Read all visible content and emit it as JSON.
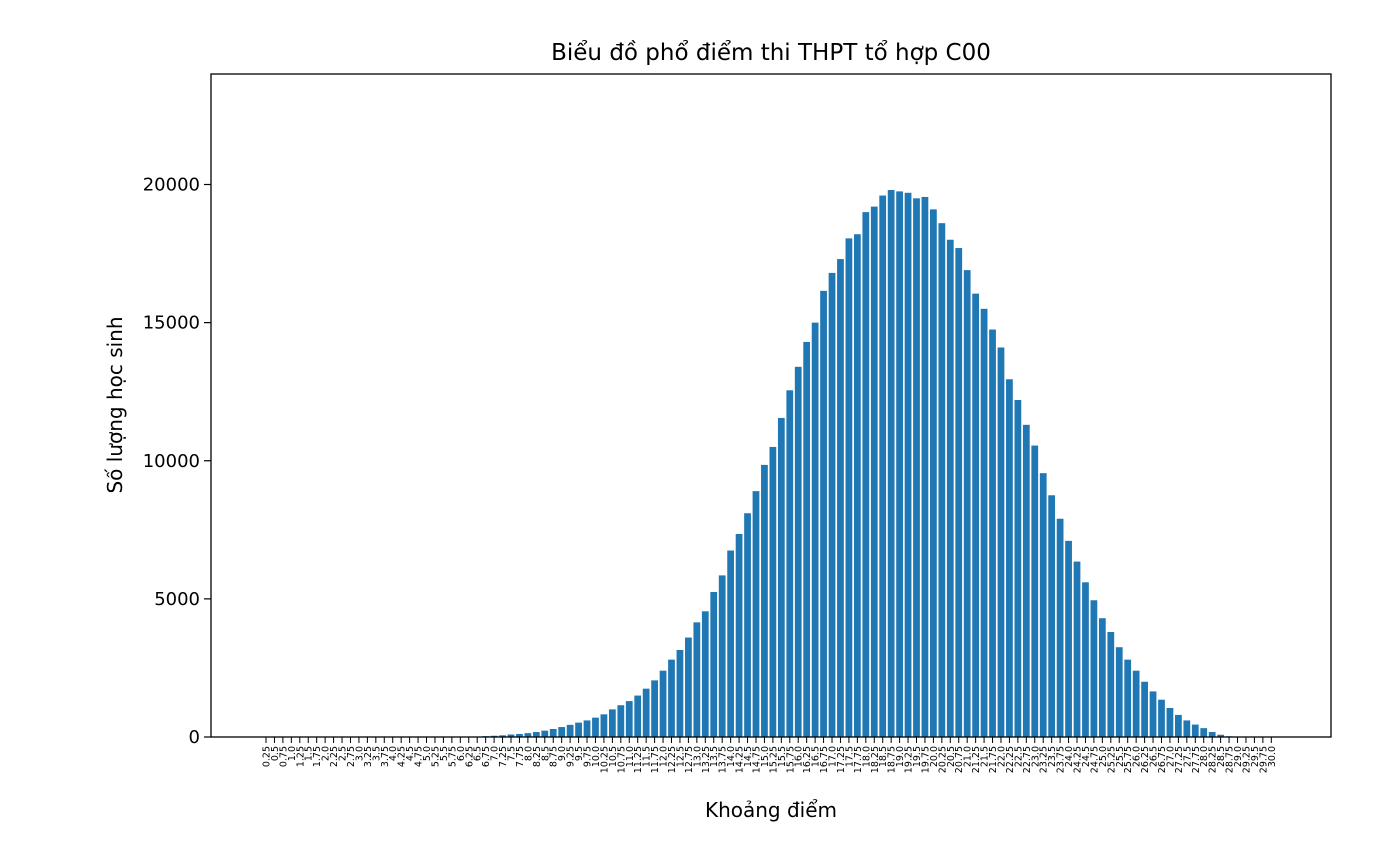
{
  "chart_data": {
    "type": "bar",
    "title": "Biểu đồ phổ điểm thi THPT tổ hợp C00",
    "xlabel": "Khoảng điểm",
    "ylabel": "Số lượng học sinh",
    "ylim": [
      0,
      24000
    ],
    "yticks": [
      0,
      5000,
      10000,
      15000,
      20000
    ],
    "grid": false,
    "bar_color": "#1f77b4",
    "categories": [
      "0.25",
      "0.5",
      "0.75",
      "1.0",
      "1.25",
      "1.5",
      "1.75",
      "2.0",
      "2.25",
      "2.5",
      "2.75",
      "3.0",
      "3.25",
      "3.5",
      "3.75",
      "4.0",
      "4.25",
      "4.5",
      "4.75",
      "5.0",
      "5.25",
      "5.5",
      "5.75",
      "6.0",
      "6.25",
      "6.5",
      "6.75",
      "7.0",
      "7.25",
      "7.5",
      "7.75",
      "8.0",
      "8.25",
      "8.5",
      "8.75",
      "9.0",
      "9.25",
      "9.5",
      "9.75",
      "10.0",
      "10.25",
      "10.5",
      "10.75",
      "11.0",
      "11.25",
      "11.5",
      "11.75",
      "12.0",
      "12.25",
      "12.5",
      "12.75",
      "13.0",
      "13.25",
      "13.5",
      "13.75",
      "14.0",
      "14.25",
      "14.5",
      "14.75",
      "15.0",
      "15.25",
      "15.5",
      "15.75",
      "16.0",
      "16.25",
      "16.5",
      "16.75",
      "17.0",
      "17.25",
      "17.5",
      "17.75",
      "18.0",
      "18.25",
      "18.5",
      "18.75",
      "19.0",
      "19.25",
      "19.5",
      "19.75",
      "20.0",
      "20.25",
      "20.5",
      "20.75",
      "21.0",
      "21.25",
      "21.5",
      "21.75",
      "22.0",
      "22.25",
      "22.5",
      "22.75",
      "23.0",
      "23.25",
      "23.5",
      "23.75",
      "24.0",
      "24.25",
      "24.5",
      "24.75",
      "25.0",
      "25.25",
      "25.5",
      "25.75",
      "26.0",
      "26.25",
      "26.5",
      "26.75",
      "27.0",
      "27.25",
      "27.5",
      "27.75",
      "28.0",
      "28.25",
      "28.5",
      "28.75",
      "29.0",
      "29.25",
      "29.5",
      "29.75",
      "30.0"
    ],
    "values": [
      0,
      0,
      0,
      0,
      0,
      0,
      0,
      0,
      0,
      0,
      0,
      0,
      0,
      0,
      0,
      0,
      0,
      0,
      0,
      0,
      2,
      3,
      5,
      8,
      10,
      15,
      30,
      45,
      60,
      90,
      110,
      140,
      180,
      230,
      290,
      360,
      440,
      520,
      600,
      700,
      820,
      1000,
      1150,
      1300,
      1500,
      1750,
      2050,
      2400,
      2800,
      3150,
      3600,
      4150,
      4550,
      5250,
      5850,
      6750,
      7350,
      8100,
      8900,
      9850,
      10500,
      11550,
      12550,
      13400,
      14300,
      15000,
      16150,
      16800,
      17300,
      18050,
      18200,
      19000,
      19200,
      19600,
      19800,
      19750,
      19700,
      19500,
      19550,
      19100,
      18600,
      18000,
      17700,
      16900,
      16050,
      15500,
      14750,
      14100,
      12950,
      12200,
      11300,
      10550,
      9550,
      8750,
      7900,
      7100,
      6350,
      5600,
      4950,
      4300,
      3800,
      3250,
      2800,
      2400,
      2000,
      1650,
      1350,
      1050,
      800,
      600,
      450,
      320,
      180,
      80,
      25,
      10,
      4,
      2,
      0,
      0
    ]
  }
}
